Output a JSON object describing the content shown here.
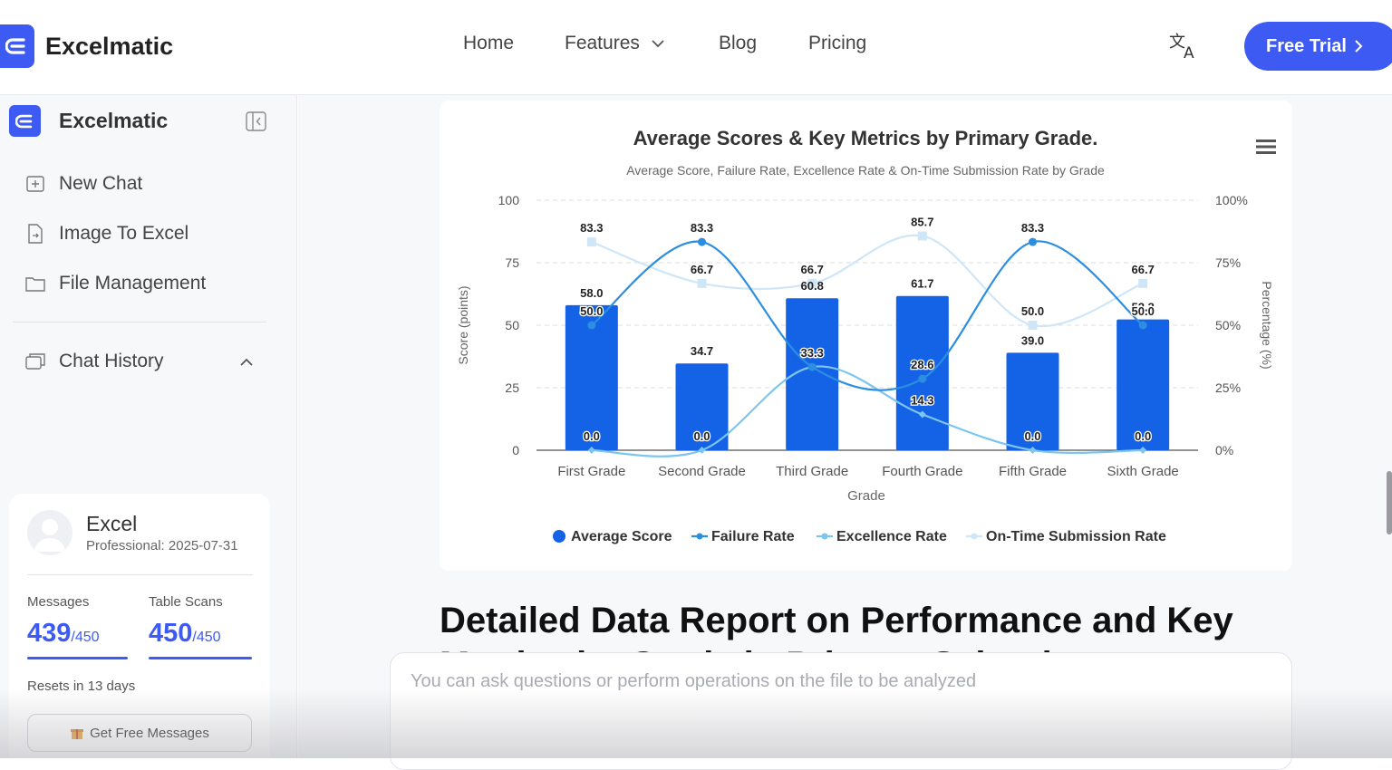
{
  "nav": {
    "brand": "Excelmatic",
    "home": "Home",
    "features": "Features",
    "blog": "Blog",
    "pricing": "Pricing",
    "trial": "Free Trial"
  },
  "sidebar": {
    "brand": "Excelmatic",
    "items": [
      {
        "label": "New Chat",
        "icon": "new-chat-icon"
      },
      {
        "label": "Image To Excel",
        "icon": "image-to-excel-icon"
      },
      {
        "label": "File Management",
        "icon": "folder-icon"
      }
    ],
    "history_label": "Chat History"
  },
  "account": {
    "name": "Excel",
    "plan": "Professional: 2025-07-31",
    "messages_label": "Messages",
    "messages_used": "439",
    "messages_max": "/450",
    "scans_label": "Table Scans",
    "scans_used": "450",
    "scans_max": "/450",
    "reset": "Resets in 13 days",
    "free_button": "Get Free Messages"
  },
  "main": {
    "report_title": "Detailed Data Report on Performance and Key",
    "report_title_cont": "Metrics by Grade in Primary School",
    "input_placeholder": "You can ask questions or perform operations on the file to be analyzed"
  },
  "colors": {
    "accent": "#3d5bf2",
    "bar": "#1463e6",
    "failure": "#2b8ee0",
    "excellence": "#7cc5ef",
    "ontime": "#cfe6f7"
  },
  "chart_data": {
    "type": "bar",
    "title": "Average Scores & Key Metrics by Primary Grade.",
    "subtitle": "Average Score, Failure Rate, Excellence Rate & On-Time Submission Rate by Grade",
    "xlabel": "Grade",
    "ylabel": "Score (points)",
    "y2label": "Percentage (%)",
    "ylim": [
      0,
      100
    ],
    "y2lim": [
      0,
      100
    ],
    "yticks": [
      "0",
      "25",
      "50",
      "75",
      "100"
    ],
    "y2ticks": [
      "0%",
      "25%",
      "50%",
      "75%",
      "100%"
    ],
    "categories": [
      "First Grade",
      "Second Grade",
      "Third Grade",
      "Fourth Grade",
      "Fifth Grade",
      "Sixth Grade"
    ],
    "series": [
      {
        "name": "Average Score",
        "type": "bar",
        "values": [
          58.0,
          34.7,
          60.8,
          61.7,
          39.0,
          52.3
        ]
      },
      {
        "name": "Failure Rate",
        "type": "line",
        "values": [
          50.0,
          83.3,
          33.3,
          28.6,
          83.3,
          50.0
        ]
      },
      {
        "name": "Excellence Rate",
        "type": "line",
        "values": [
          0.0,
          0.0,
          33.3,
          14.3,
          0.0,
          0.0
        ]
      },
      {
        "name": "On-Time Submission Rate",
        "type": "line",
        "values": [
          83.3,
          66.7,
          66.7,
          85.7,
          50.0,
          66.7
        ]
      }
    ],
    "legend_position": "bottom"
  }
}
